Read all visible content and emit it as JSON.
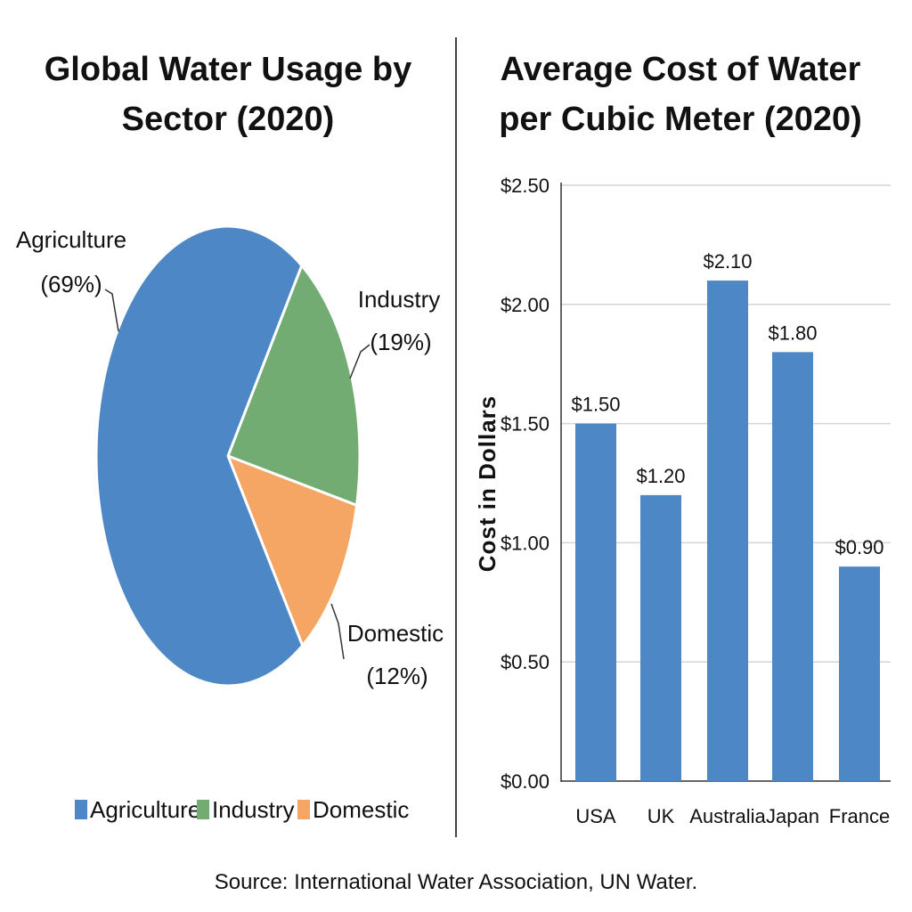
{
  "source": "Source: International Water Association, UN Water.",
  "chart_data": [
    {
      "type": "pie",
      "title_lines": [
        "Global Water Usage by",
        "Sector (2020)"
      ],
      "slices": [
        {
          "name": "Agriculture",
          "value": 69,
          "label": "(69%)",
          "color": "#4e87c6"
        },
        {
          "name": "Industry",
          "value": 19,
          "label": "(19%)",
          "color": "#72ac72"
        },
        {
          "name": "Domestic",
          "value": 12,
          "label": "(12%)",
          "color": "#f6a664"
        }
      ],
      "legend": [
        "Agriculture",
        "Industry",
        "Domestic"
      ],
      "legend_position": "bottom"
    },
    {
      "type": "bar",
      "title_lines": [
        "Average Cost of Water",
        "per Cubic Meter (2020)"
      ],
      "ylabel": "Cost in Dollars",
      "ylim": [
        0,
        2.5
      ],
      "yticks": [
        "$0.00",
        "$0.50",
        "$1.00",
        "$1.50",
        "$2.00",
        "$2.50"
      ],
      "categories": [
        "USA",
        "UK",
        "Australia",
        "Japan",
        "France"
      ],
      "values": [
        1.5,
        1.2,
        2.1,
        1.8,
        0.9
      ],
      "value_labels": [
        "$1.50",
        "$1.20",
        "$2.10",
        "$1.80",
        "$0.90"
      ],
      "color": "#4e87c6",
      "grid": true
    }
  ]
}
